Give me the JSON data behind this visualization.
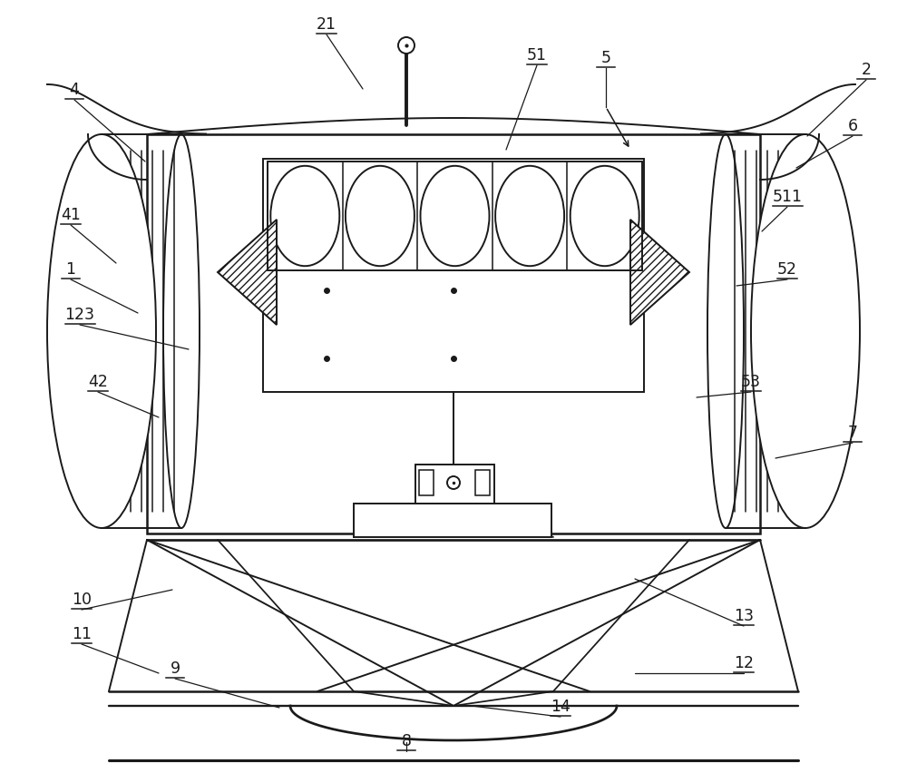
{
  "bg_color": "#ffffff",
  "line_color": "#1a1a1a",
  "lw": 1.4,
  "fig_w": 10.0,
  "fig_h": 8.52,
  "labels": [
    [
      "2",
      955,
      88,
      890,
      150,
      "left"
    ],
    [
      "4",
      82,
      110,
      160,
      178,
      "left"
    ],
    [
      "5",
      668,
      75,
      700,
      142,
      "left"
    ],
    [
      "6",
      940,
      150,
      878,
      185,
      "left"
    ],
    [
      "7",
      940,
      488,
      855,
      505,
      "left"
    ],
    [
      "8",
      448,
      828,
      448,
      818,
      "center"
    ],
    [
      "9",
      193,
      748,
      308,
      780,
      "left"
    ],
    [
      "10",
      90,
      672,
      190,
      650,
      "left"
    ],
    [
      "11",
      90,
      710,
      175,
      742,
      "left"
    ],
    [
      "12",
      820,
      742,
      700,
      742,
      "left"
    ],
    [
      "13",
      820,
      690,
      700,
      638,
      "left"
    ],
    [
      "14",
      618,
      790,
      520,
      778,
      "left"
    ],
    [
      "21",
      360,
      38,
      400,
      98,
      "left"
    ],
    [
      "41",
      78,
      248,
      128,
      290,
      "left"
    ],
    [
      "42",
      108,
      432,
      175,
      460,
      "left"
    ],
    [
      "51",
      592,
      72,
      558,
      165,
      "left"
    ],
    [
      "52",
      868,
      308,
      812,
      315,
      "left"
    ],
    [
      "53",
      828,
      432,
      768,
      438,
      "left"
    ],
    [
      "123",
      88,
      358,
      208,
      385,
      "left"
    ],
    [
      "511",
      868,
      228,
      840,
      255,
      "left"
    ],
    [
      "1",
      78,
      308,
      152,
      345,
      "left"
    ]
  ]
}
